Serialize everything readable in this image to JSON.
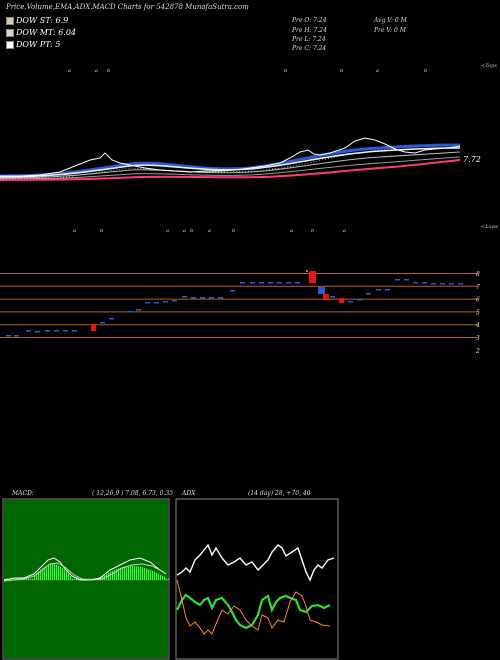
{
  "header": {
    "title": "Price,Volume,EMA,ADX,MACD Charts for 542878  MunafaSutra.com",
    "dow_st": "DOW ST: 6.9",
    "dow_mt": "DOW MT: 6.04",
    "dow_pt": "DOW PT: 5",
    "prev_o": "Pre   O: 7.24",
    "prev_h": "Pre   H: 7.24",
    "prev_l": "Pre   L: 7.24",
    "prev_c": "Pre   C: 7.24",
    "avg_v": "Avg V: 0   M",
    "pre_v": "Pre   V: 0   M"
  },
  "colors": {
    "st_swatch": "#d9c7a8",
    "mt_swatch": "#cfd8e0",
    "pt_swatch": "#ffffff",
    "price": "#ffffff",
    "ema_blue": "#2a5bd7",
    "ema_pink": "#ff3a6e",
    "grid_orange": "#b4641e",
    "macd_green": "#33ff33",
    "adx_orange": "#ff8c1a"
  },
  "labels": {
    "tops": "<Tops",
    "lows": "<Lows",
    "last_price": "7.72"
  },
  "chart_data": [
    {
      "type": "line",
      "name": "price_ema",
      "last_value": 7.72,
      "top_markers": [
        "a",
        "a",
        "b",
        "b",
        "b",
        "a",
        "b",
        "a"
      ],
      "low_markers": [
        "a",
        "b",
        "a",
        "a",
        "b",
        "a",
        "b",
        "a",
        "b",
        "a"
      ]
    },
    {
      "type": "scatter",
      "name": "price_levels",
      "yticks": [
        2,
        3,
        4,
        5,
        6,
        7,
        8
      ],
      "levels": [
        8,
        7,
        6,
        5,
        4,
        3
      ]
    },
    {
      "type": "bar",
      "name": "MACD",
      "label": "MACD:",
      "params": "( 12,26,9 ) 7.08,  6.73,  0.35"
    },
    {
      "type": "line",
      "name": "ADX",
      "label": "ADX",
      "params": "(14  day) 28,  +70,  40"
    }
  ]
}
